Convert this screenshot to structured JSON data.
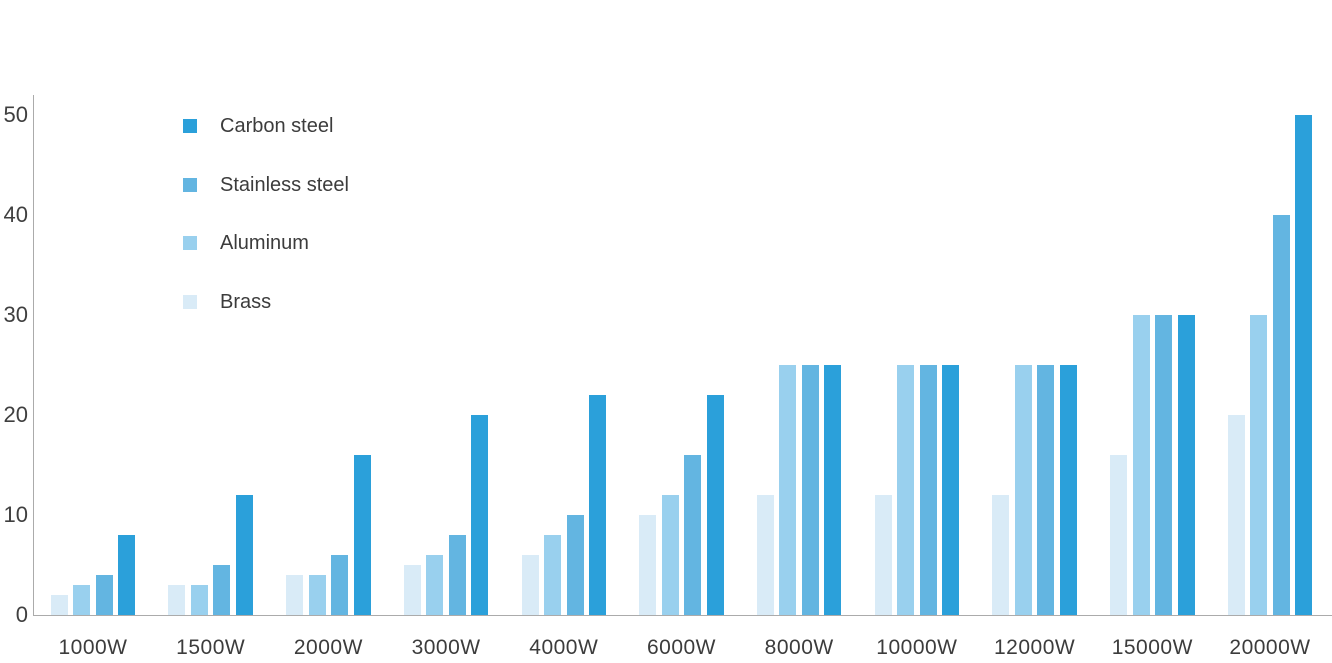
{
  "chart_data": {
    "type": "bar",
    "title": "",
    "xlabel": "",
    "ylabel": "",
    "categories": [
      "1000W",
      "1500W",
      "2000W",
      "3000W",
      "4000W",
      "6000W",
      "8000W",
      "10000W",
      "12000W",
      "15000W",
      "20000W"
    ],
    "series": [
      {
        "name": "Carbon steel",
        "color": "#2BA0DA",
        "values": [
          8,
          12,
          16,
          20,
          22,
          22,
          25,
          25,
          25,
          30,
          50
        ]
      },
      {
        "name": "Stainless steel",
        "color": "#63B5E1",
        "values": [
          4,
          5,
          6,
          8,
          10,
          16,
          25,
          25,
          25,
          30,
          40
        ]
      },
      {
        "name": "Aluminum",
        "color": "#99D0EE",
        "values": [
          3,
          3,
          4,
          6,
          8,
          12,
          25,
          25,
          25,
          30,
          30
        ]
      },
      {
        "name": "Brass",
        "color": "#D9EBF7",
        "values": [
          2,
          3,
          4,
          5,
          6,
          10,
          12,
          12,
          12,
          16,
          20
        ]
      }
    ],
    "bar_order_in_group": [
      "Brass",
      "Aluminum",
      "Stainless steel",
      "Carbon steel"
    ],
    "y_ticks": [
      0,
      10,
      20,
      30,
      40,
      50
    ],
    "ylim": [
      0,
      52
    ],
    "grid": false,
    "legend_position": "top-left-inside",
    "axis_color": "#ABABAB",
    "text_color": "#3F3F3F"
  }
}
